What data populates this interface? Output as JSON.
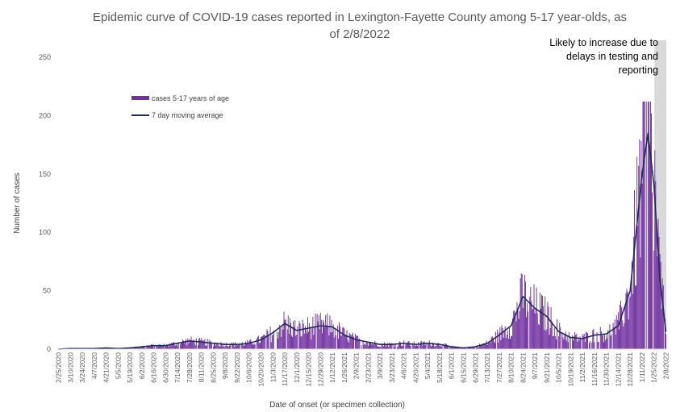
{
  "chart_data": {
    "type": "bar",
    "title_line1": "Epidemic curve of COVID-19 cases reported in Lexington-Fayette County among 5-17 year-olds, as",
    "title_line2": "of 2/8/2022",
    "xlabel": "Date of onset (or specimen collection)",
    "ylabel": "Number of cases",
    "ylim": [
      0,
      250
    ],
    "yticks": [
      "0",
      "50",
      "100",
      "150",
      "200",
      "250"
    ],
    "grid": false,
    "legend": {
      "position": "top-left",
      "bar_label": "cases 5-17 years of age",
      "line_label": "7 day moving average"
    },
    "annotation": {
      "line1": "Likely to increase due to",
      "line2": "delays in testing and",
      "line3": "reporting",
      "shaded_from": "1/26/2022",
      "shaded_to": "2/8/2022"
    },
    "colors": {
      "bars": "#7030A0",
      "line": "#1F2A5C",
      "shade": "#D9D9D9"
    },
    "x_start": "2/25/2020",
    "x_end": "2/8/2022",
    "xticks": [
      "2/25/2020",
      "3/10/2020",
      "3/24/2020",
      "4/7/2020",
      "4/21/2020",
      "5/5/2020",
      "5/19/2020",
      "6/2/2020",
      "6/16/2020",
      "6/30/2020",
      "7/14/2020",
      "7/28/2020",
      "8/11/2020",
      "8/25/2020",
      "9/8/2020",
      "9/22/2020",
      "10/6/2020",
      "10/20/2020",
      "11/3/2020",
      "11/17/2020",
      "12/1/2020",
      "12/15/2020",
      "12/29/2020",
      "1/12/2021",
      "1/26/2021",
      "2/9/2021",
      "2/23/2021",
      "3/9/2021",
      "3/23/2021",
      "4/6/2021",
      "4/20/2021",
      "5/4/2021",
      "5/18/2021",
      "6/1/2021",
      "6/15/2021",
      "6/29/2021",
      "7/13/2021",
      "7/27/2021",
      "8/10/2021",
      "8/24/2021",
      "9/7/2021",
      "9/21/2021",
      "10/5/2021",
      "10/19/2021",
      "11/2/2021",
      "11/16/2021",
      "11/30/2021",
      "12/14/2021",
      "12/28/2021",
      "1/11/2022",
      "1/25/2022",
      "2/8/2022"
    ],
    "weekly_avg_points": [
      {
        "x": "2/25/2020",
        "avg": 0
      },
      {
        "x": "3/10/2020",
        "avg": 0.5
      },
      {
        "x": "3/24/2020",
        "avg": 0.5
      },
      {
        "x": "4/7/2020",
        "avg": 0.5
      },
      {
        "x": "4/21/2020",
        "avg": 1
      },
      {
        "x": "5/5/2020",
        "avg": 0.5
      },
      {
        "x": "5/19/2020",
        "avg": 1
      },
      {
        "x": "6/2/2020",
        "avg": 2
      },
      {
        "x": "6/16/2020",
        "avg": 3
      },
      {
        "x": "6/30/2020",
        "avg": 3
      },
      {
        "x": "7/14/2020",
        "avg": 5
      },
      {
        "x": "7/28/2020",
        "avg": 7
      },
      {
        "x": "8/11/2020",
        "avg": 6
      },
      {
        "x": "8/25/2020",
        "avg": 5
      },
      {
        "x": "9/8/2020",
        "avg": 4
      },
      {
        "x": "9/22/2020",
        "avg": 4
      },
      {
        "x": "10/6/2020",
        "avg": 5
      },
      {
        "x": "10/20/2020",
        "avg": 8
      },
      {
        "x": "11/3/2020",
        "avg": 14
      },
      {
        "x": "11/17/2020",
        "avg": 22
      },
      {
        "x": "12/1/2020",
        "avg": 16
      },
      {
        "x": "12/15/2020",
        "avg": 18
      },
      {
        "x": "12/29/2020",
        "avg": 20
      },
      {
        "x": "1/12/2021",
        "avg": 19
      },
      {
        "x": "1/26/2021",
        "avg": 12
      },
      {
        "x": "2/9/2021",
        "avg": 8
      },
      {
        "x": "2/23/2021",
        "avg": 6
      },
      {
        "x": "3/9/2021",
        "avg": 4
      },
      {
        "x": "3/23/2021",
        "avg": 4
      },
      {
        "x": "4/6/2021",
        "avg": 5
      },
      {
        "x": "4/20/2021",
        "avg": 4
      },
      {
        "x": "5/4/2021",
        "avg": 5
      },
      {
        "x": "5/18/2021",
        "avg": 4
      },
      {
        "x": "6/1/2021",
        "avg": 2
      },
      {
        "x": "6/15/2021",
        "avg": 1
      },
      {
        "x": "6/29/2021",
        "avg": 2
      },
      {
        "x": "7/13/2021",
        "avg": 5
      },
      {
        "x": "7/27/2021",
        "avg": 12
      },
      {
        "x": "8/10/2021",
        "avg": 20
      },
      {
        "x": "8/24/2021",
        "avg": 45
      },
      {
        "x": "9/7/2021",
        "avg": 35
      },
      {
        "x": "9/21/2021",
        "avg": 28
      },
      {
        "x": "10/5/2021",
        "avg": 15
      },
      {
        "x": "10/19/2021",
        "avg": 10
      },
      {
        "x": "11/2/2021",
        "avg": 9
      },
      {
        "x": "11/16/2021",
        "avg": 12
      },
      {
        "x": "11/30/2021",
        "avg": 13
      },
      {
        "x": "12/14/2021",
        "avg": 20
      },
      {
        "x": "12/28/2021",
        "avg": 50
      },
      {
        "x": "1/11/2022",
        "avg": 150
      },
      {
        "x": "1/18/2022",
        "avg": 185
      },
      {
        "x": "1/25/2022",
        "avg": 140
      },
      {
        "x": "2/1/2022",
        "avg": 60
      },
      {
        "x": "2/8/2022",
        "avg": 15
      }
    ]
  }
}
